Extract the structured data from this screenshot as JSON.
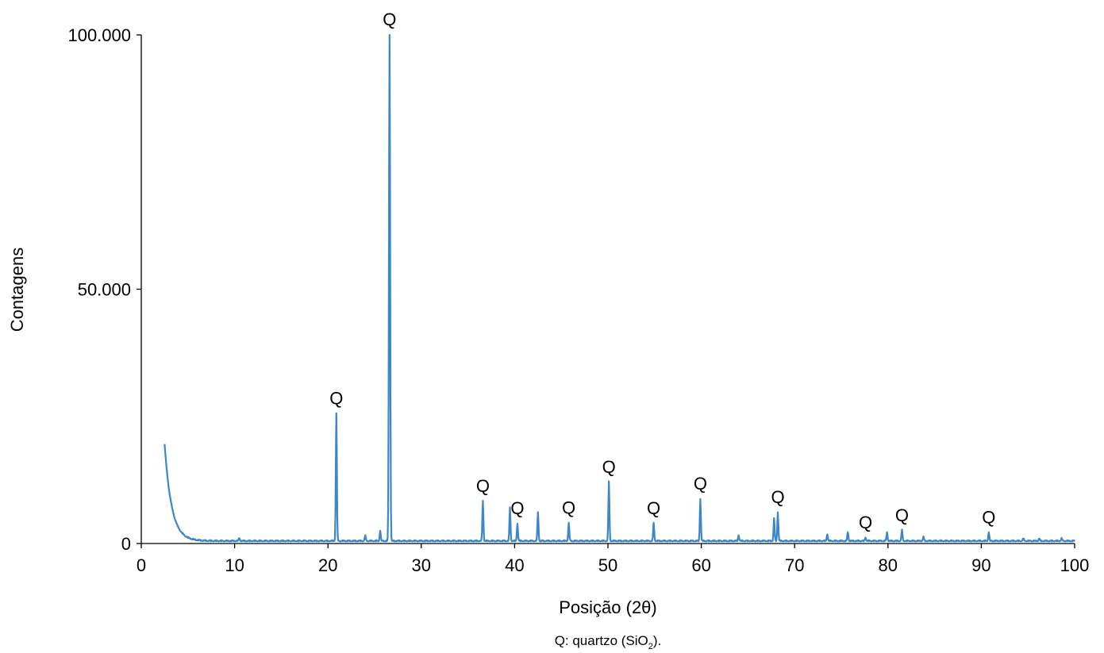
{
  "chart_data": {
    "type": "line",
    "title": "",
    "xlabel": "Posição (2θ)",
    "ylabel": "Contagens",
    "xlim": [
      0,
      100
    ],
    "ylim": [
      0,
      100000
    ],
    "x_ticks": [
      0,
      10,
      20,
      30,
      40,
      50,
      60,
      70,
      80,
      90,
      100
    ],
    "y_ticks": [
      {
        "value": 0,
        "label": "0"
      },
      {
        "value": 50000,
        "label": "50.000"
      },
      {
        "value": 100000,
        "label": "100.000"
      }
    ],
    "grid": false,
    "line_color": "#3d87c9",
    "peaks": [
      {
        "x": 2.5,
        "y": 20000,
        "label": ""
      },
      {
        "x": 10.5,
        "y": 1000,
        "label": ""
      },
      {
        "x": 20.9,
        "y": 25500,
        "label": "Q"
      },
      {
        "x": 24.0,
        "y": 1400,
        "label": ""
      },
      {
        "x": 25.6,
        "y": 2400,
        "label": ""
      },
      {
        "x": 26.6,
        "y": 100000,
        "label": "Q"
      },
      {
        "x": 36.6,
        "y": 8300,
        "label": "Q"
      },
      {
        "x": 39.5,
        "y": 6900,
        "label": ""
      },
      {
        "x": 40.3,
        "y": 3900,
        "label": "Q"
      },
      {
        "x": 42.5,
        "y": 6100,
        "label": ""
      },
      {
        "x": 45.8,
        "y": 4000,
        "label": "Q"
      },
      {
        "x": 50.1,
        "y": 12000,
        "label": "Q"
      },
      {
        "x": 54.9,
        "y": 3900,
        "label": "Q"
      },
      {
        "x": 59.9,
        "y": 8700,
        "label": "Q"
      },
      {
        "x": 64.0,
        "y": 1600,
        "label": ""
      },
      {
        "x": 67.8,
        "y": 4800,
        "label": ""
      },
      {
        "x": 68.2,
        "y": 6100,
        "label": "Q"
      },
      {
        "x": 73.5,
        "y": 1800,
        "label": ""
      },
      {
        "x": 75.7,
        "y": 2200,
        "label": ""
      },
      {
        "x": 77.6,
        "y": 1100,
        "label": "Q"
      },
      {
        "x": 79.9,
        "y": 2100,
        "label": ""
      },
      {
        "x": 81.5,
        "y": 2500,
        "label": "Q"
      },
      {
        "x": 83.8,
        "y": 1200,
        "label": ""
      },
      {
        "x": 90.8,
        "y": 2100,
        "label": "Q"
      },
      {
        "x": 94.5,
        "y": 900,
        "label": ""
      },
      {
        "x": 96.2,
        "y": 900,
        "label": ""
      },
      {
        "x": 98.6,
        "y": 900,
        "label": ""
      }
    ]
  },
  "caption": {
    "prefix": "Q: quartzo (SiO",
    "subscript": "2",
    "suffix": ")."
  }
}
